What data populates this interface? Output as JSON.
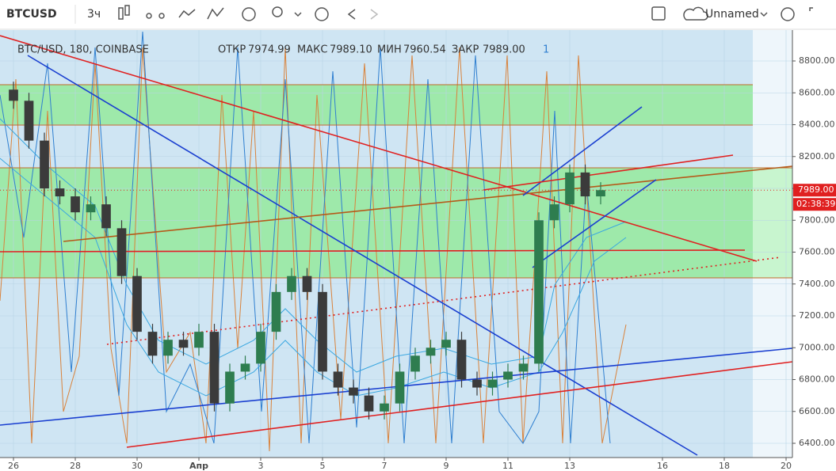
{
  "toolbar": {
    "symbol": "BTCUSD",
    "interval": "3ч",
    "layout_name": "Unnamed"
  },
  "legend": {
    "title": "BTC/USD, 180, COINBASE",
    "open_label": "ОТКР",
    "open": "7974.99",
    "high_label": "МАКС",
    "high": "7989.10",
    "low_label": "МИН",
    "low": "7960.54",
    "close_label": "ЗАКР",
    "close": "7989.00",
    "indicators": "1"
  },
  "chart_data": {
    "type": "candlestick",
    "x": [
      0,
      0.5,
      1,
      1.5,
      2,
      2.5,
      3,
      3.5,
      4,
      4.5,
      5,
      5.5,
      6,
      6.5,
      7,
      7.5,
      8,
      8.5,
      9,
      9.5,
      10,
      10.5,
      11,
      11.5,
      12,
      12.5,
      13,
      13.5,
      14,
      14.5,
      15,
      15.5,
      16,
      16.5,
      17,
      17.5,
      18,
      18.5,
      19
    ],
    "open": [
      8620,
      8550,
      8300,
      8000,
      7950,
      7850,
      7900,
      7750,
      7450,
      7100,
      6950,
      7050,
      7000,
      7100,
      6650,
      6850,
      6900,
      7100,
      7350,
      7450,
      7350,
      6850,
      6750,
      6700,
      6600,
      6650,
      6850,
      6950,
      7000,
      7050,
      6800,
      6750,
      6800,
      6850,
      6900,
      7800,
      7900,
      8100,
      7950
    ],
    "high": [
      8670,
      8600,
      8350,
      8050,
      8000,
      7950,
      7950,
      7800,
      7500,
      7150,
      7100,
      7100,
      7150,
      7150,
      6900,
      6950,
      7150,
      7400,
      7500,
      7500,
      7400,
      6900,
      6800,
      6750,
      6700,
      6900,
      7000,
      7050,
      7100,
      7100,
      6850,
      6850,
      6900,
      6950,
      7850,
      7950,
      8150,
      8150,
      8039
    ],
    "low": [
      8500,
      8250,
      7950,
      7900,
      7800,
      7800,
      7700,
      7400,
      7050,
      6900,
      6900,
      6950,
      6950,
      6600,
      6600,
      6800,
      6850,
      7050,
      7300,
      7300,
      6800,
      6700,
      6650,
      6550,
      6550,
      6600,
      6800,
      6900,
      6950,
      6750,
      6700,
      6700,
      6750,
      6800,
      6850,
      7750,
      7850,
      7900,
      7900
    ],
    "close": [
      8550,
      8300,
      8000,
      7950,
      7850,
      7900,
      7750,
      7450,
      7100,
      6950,
      7050,
      7000,
      7100,
      6650,
      6850,
      6900,
      7100,
      7350,
      7450,
      7350,
      6850,
      6750,
      6700,
      6600,
      6650,
      6850,
      6950,
      7000,
      7050,
      6800,
      6750,
      6800,
      6850,
      6900,
      7800,
      7900,
      8100,
      7950,
      7989
    ],
    "up_color": "#2e7d4f",
    "down_color": "#3b3b3b",
    "xlim": [
      -0.436,
      25.205
    ],
    "ylim": [
      6310.6,
      8993.8
    ],
    "xticks": [
      {
        "value": 0,
        "label": "26"
      },
      {
        "value": 2,
        "label": "28"
      },
      {
        "value": 4,
        "label": "30"
      },
      {
        "value": 6,
        "label": "Апр"
      },
      {
        "value": 8,
        "label": "3"
      },
      {
        "value": 10,
        "label": "5"
      },
      {
        "value": 12,
        "label": "7"
      },
      {
        "value": 14,
        "label": "9"
      },
      {
        "value": 16,
        "label": "11"
      },
      {
        "value": 18,
        "label": "13"
      },
      {
        "value": 21,
        "label": "16"
      },
      {
        "value": 23,
        "label": "18"
      },
      {
        "value": 25,
        "label": "20"
      }
    ],
    "yticks": [
      {
        "value": 6400,
        "label": "6400.00"
      },
      {
        "value": 6600,
        "label": "6600.00"
      },
      {
        "value": 6800,
        "label": "6800.00"
      },
      {
        "value": 7000,
        "label": "7000.00"
      },
      {
        "value": 7200,
        "label": "7200.00"
      },
      {
        "value": 7400,
        "label": "7400.00"
      },
      {
        "value": 7600,
        "label": "7600.00"
      },
      {
        "value": 7800,
        "label": "7800.00"
      },
      {
        "value": 8000,
        "label": "8000.00"
      },
      {
        "value": 8200,
        "label": "8200.00"
      },
      {
        "value": 8400,
        "label": "8400.00"
      },
      {
        "value": 8600,
        "label": "8600.00"
      },
      {
        "value": 8800,
        "label": "8800.00"
      }
    ],
    "last_price": {
      "value": 7989,
      "label": "7989.00"
    },
    "countdown": "02:38:39"
  }
}
